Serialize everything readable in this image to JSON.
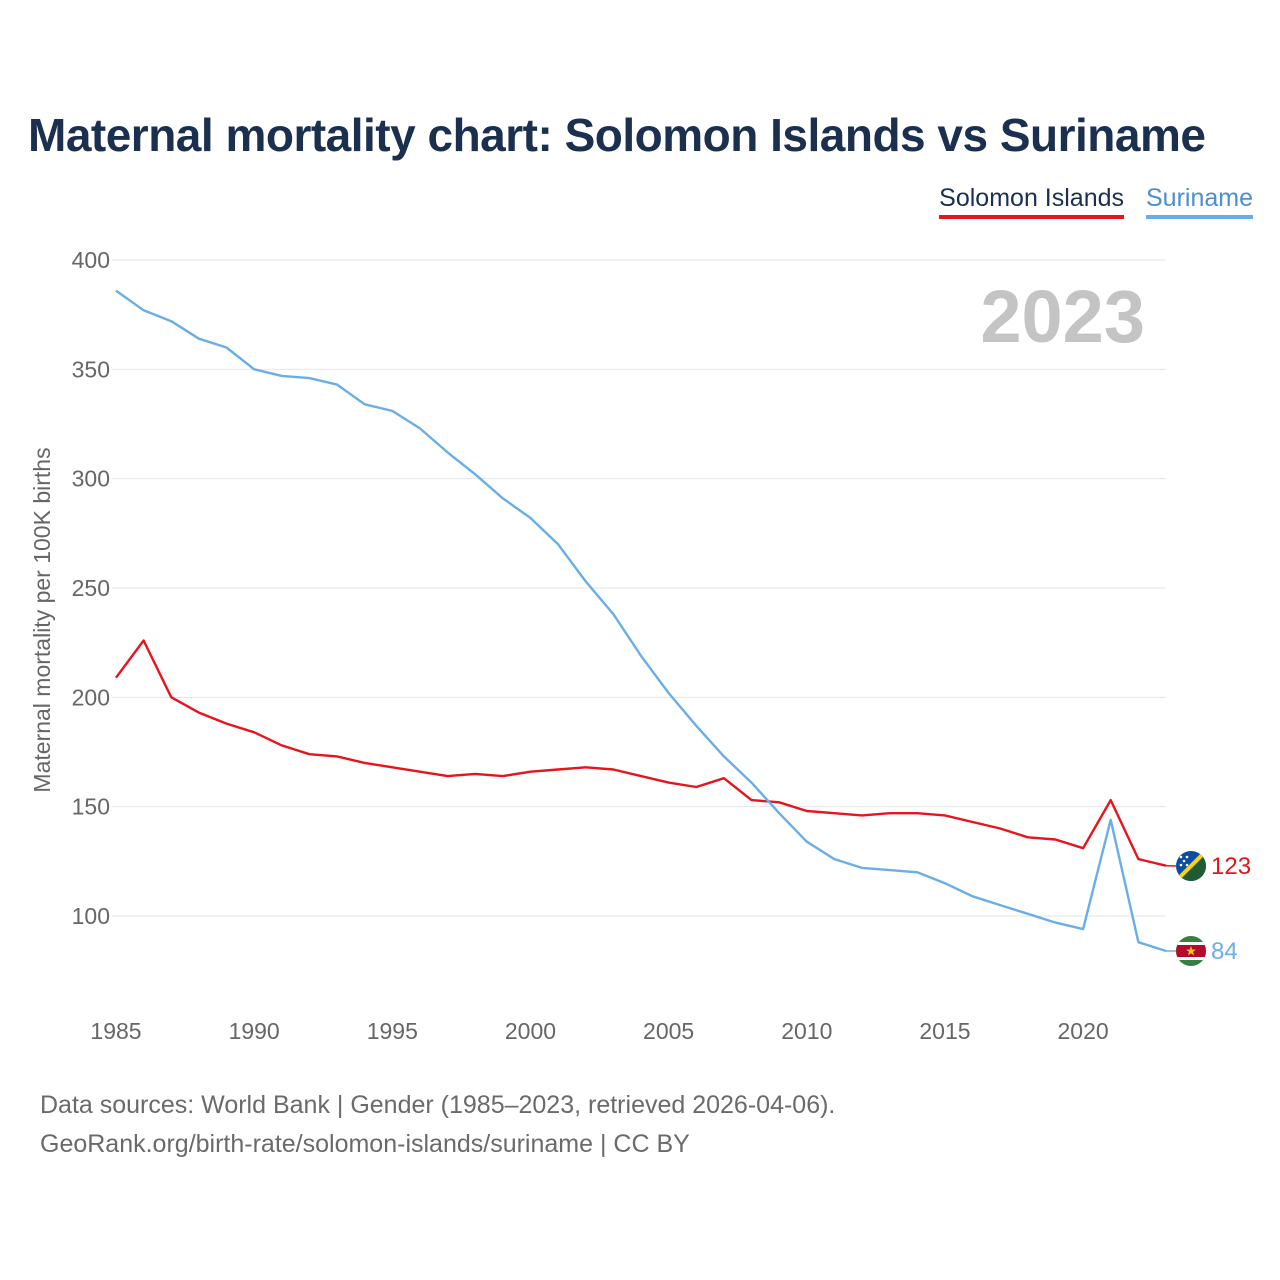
{
  "chart_data": {
    "type": "line",
    "title": "Maternal mortality chart: Solomon Islands vs Suriname",
    "ylabel": "Maternal mortality per 100K births",
    "xlabel": "",
    "year_label": "2023",
    "x": [
      1985,
      1986,
      1987,
      1988,
      1989,
      1990,
      1991,
      1992,
      1993,
      1994,
      1995,
      1996,
      1997,
      1998,
      1999,
      2000,
      2001,
      2002,
      2003,
      2004,
      2005,
      2006,
      2007,
      2008,
      2009,
      2010,
      2011,
      2012,
      2013,
      2014,
      2015,
      2016,
      2017,
      2018,
      2019,
      2020,
      2021,
      2022,
      2023
    ],
    "xlim": [
      1985,
      2023
    ],
    "ylim": [
      70,
      400
    ],
    "x_ticks": [
      1985,
      1990,
      1995,
      2000,
      2005,
      2010,
      2015,
      2020
    ],
    "y_ticks": [
      100,
      150,
      200,
      250,
      300,
      350,
      400
    ],
    "series": [
      {
        "name": "Solomon Islands",
        "color": "#e8141c",
        "end_label": "123",
        "flag_icon": "solomon-islands-flag-icon",
        "values": [
          209,
          226,
          200,
          193,
          188,
          184,
          178,
          174,
          173,
          170,
          168,
          166,
          164,
          165,
          164,
          166,
          167,
          168,
          167,
          164,
          161,
          159,
          163,
          153,
          152,
          148,
          147,
          146,
          147,
          147,
          146,
          143,
          140,
          136,
          135,
          131,
          153,
          126,
          123
        ]
      },
      {
        "name": "Suriname",
        "color": "#6aaee8",
        "end_label": "84",
        "flag_icon": "suriname-flag-icon",
        "values": [
          386,
          377,
          372,
          364,
          360,
          350,
          347,
          346,
          343,
          334,
          331,
          323,
          312,
          302,
          291,
          282,
          270,
          253,
          238,
          219,
          202,
          187,
          173,
          161,
          147,
          134,
          126,
          122,
          121,
          120,
          115,
          109,
          105,
          101,
          97,
          94,
          144,
          88,
          84
        ]
      }
    ]
  },
  "legend": {
    "items": [
      "Solomon Islands",
      "Suriname"
    ]
  },
  "footer": {
    "source_line": "Data sources: World Bank | Gender (1985–2023, retrieved 2026-04-06).",
    "url_line": "GeoRank.org/birth-rate/solomon-islands/suriname | CC BY"
  }
}
